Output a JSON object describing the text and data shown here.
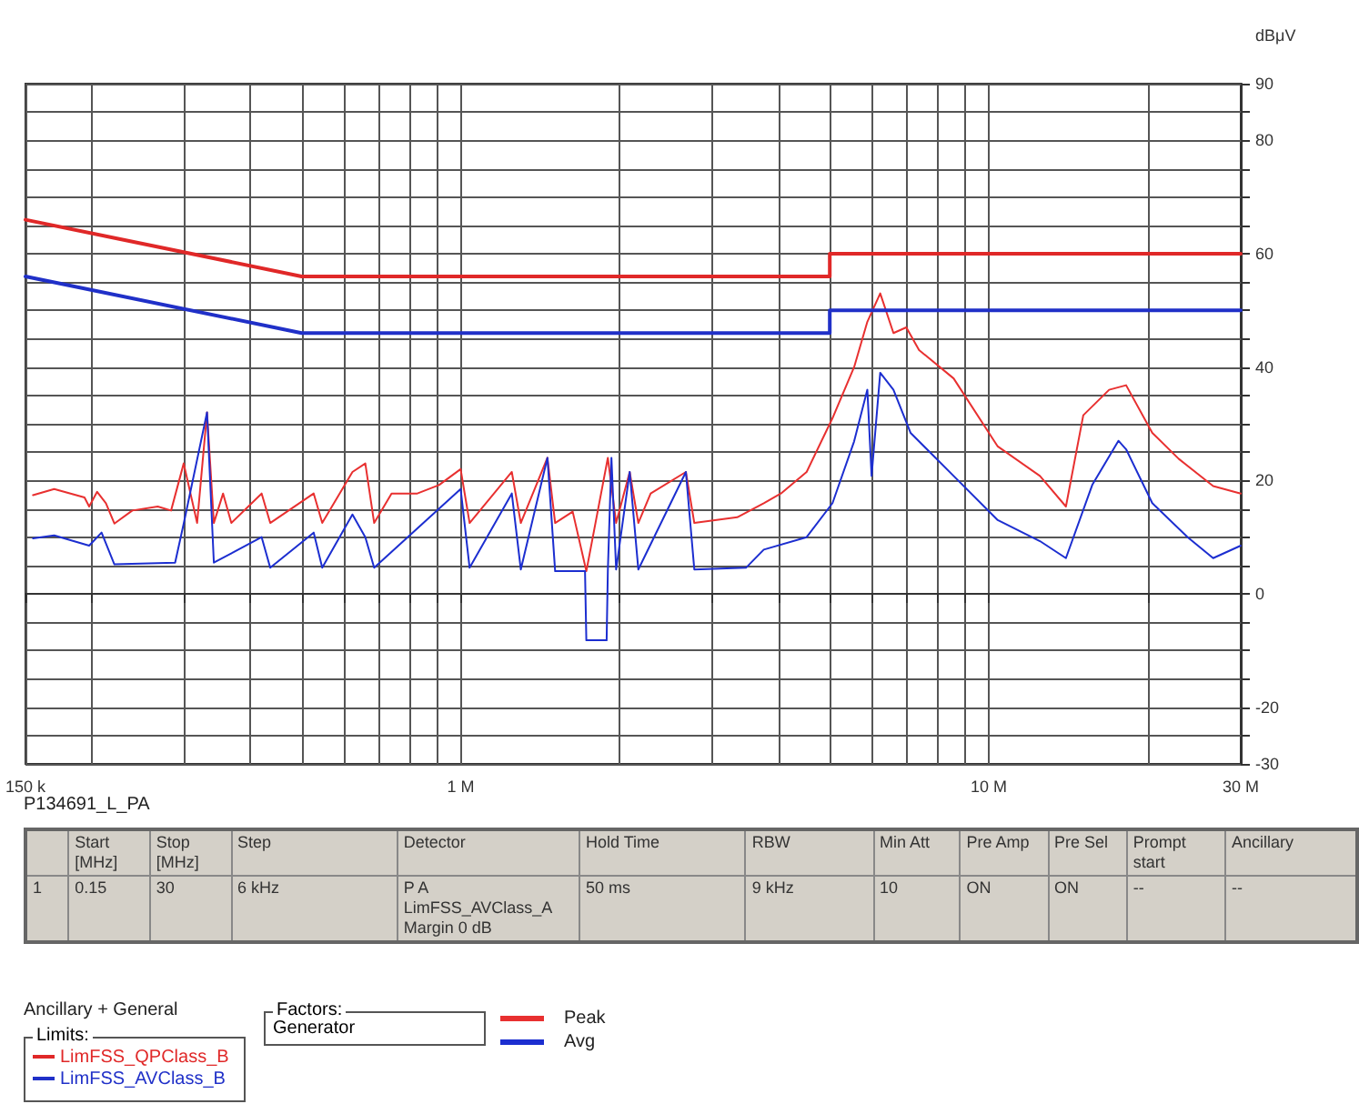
{
  "chart_data": {
    "type": "line",
    "subtitle": "P134691_L_PA",
    "ylabel": "dBμV",
    "xlim": [
      0.15,
      30
    ],
    "log": "x",
    "xticks": [
      {
        "value": 0.15,
        "label": "150 k"
      },
      {
        "value": 0.2,
        "label": null
      },
      {
        "value": 0.3,
        "label": null
      },
      {
        "value": 0.4,
        "label": null
      },
      {
        "value": 0.5,
        "label": null
      },
      {
        "value": 0.6,
        "label": null
      },
      {
        "value": 0.7,
        "label": null
      },
      {
        "value": 0.8,
        "label": null
      },
      {
        "value": 0.9,
        "label": null
      },
      {
        "value": 1,
        "label": "1 M"
      },
      {
        "value": 2,
        "label": null
      },
      {
        "value": 3,
        "label": null
      },
      {
        "value": 4,
        "label": null
      },
      {
        "value": 5,
        "label": null
      },
      {
        "value": 6,
        "label": null
      },
      {
        "value": 7,
        "label": null
      },
      {
        "value": 8,
        "label": null
      },
      {
        "value": 9,
        "label": null
      },
      {
        "value": 10,
        "label": "10 M"
      },
      {
        "value": 20,
        "label": null
      },
      {
        "value": 30,
        "label": "30 M"
      }
    ],
    "ylim": [
      -30,
      90
    ],
    "yticks": [
      -30,
      {
        "value": -25,
        "label": null
      },
      -20,
      {
        "value": -15,
        "label": null
      },
      {
        "value": -10,
        "label": null
      },
      {
        "value": -5,
        "label": null
      },
      0,
      {
        "value": 5,
        "label": null
      },
      {
        "value": 10,
        "label": null
      },
      {
        "value": 15,
        "label": null
      },
      20,
      {
        "value": 25,
        "label": null
      },
      {
        "value": 30,
        "label": null
      },
      {
        "value": 35,
        "label": null
      },
      40,
      {
        "value": 45,
        "label": null
      },
      {
        "value": 50,
        "label": null
      },
      {
        "value": 55,
        "label": null
      },
      60,
      {
        "value": 65,
        "label": null
      },
      {
        "value": 70,
        "label": null
      },
      {
        "value": 75,
        "label": null
      },
      80,
      {
        "value": 85,
        "label": null
      },
      90
    ],
    "grid": true,
    "legend": "bottom",
    "marker": "none",
    "line_style": "solid",
    "series": [
      {
        "name": "LimFSS_QPClass_B",
        "color": "#e02828",
        "x": [
          0.15,
          0.5,
          5,
          5,
          30
        ],
        "values": [
          66,
          56,
          56,
          60,
          60
        ]
      },
      {
        "name": "LimFSS_AVClass_B",
        "color": "#2030c8",
        "x": [
          0.15,
          0.5,
          5,
          5,
          30
        ],
        "values": [
          56,
          46,
          46,
          50,
          50
        ]
      },
      {
        "name": "Peak",
        "color": "#e83030",
        "x": [
          0.155,
          0.17,
          0.194,
          0.198,
          0.205,
          0.213,
          0.221,
          0.239,
          0.267,
          0.283,
          0.299,
          0.317,
          0.331,
          0.341,
          0.355,
          0.368,
          0.42,
          0.436,
          0.527,
          0.547,
          0.624,
          0.66,
          0.686,
          0.74,
          0.828,
          0.91,
          1.0,
          1.04,
          1.25,
          1.3,
          1.46,
          1.51,
          1.63,
          1.73,
          1.9,
          1.97,
          2.09,
          2.17,
          2.29,
          2.67,
          2.77,
          3.34,
          3.75,
          4.04,
          4.52,
          5.06,
          5.56,
          5.89,
          6.23,
          6.6,
          6.98,
          7.38,
          8.58,
          10.4,
          12.5,
          14.0,
          15.1,
          16.9,
          18.2,
          20.4,
          22.9,
          26.6,
          30
        ],
        "values": [
          17.4,
          18.5,
          17,
          15.4,
          18,
          16,
          12.4,
          14.7,
          15.4,
          14.7,
          23,
          12.5,
          32,
          12.5,
          17.7,
          12.5,
          17.7,
          12.5,
          17.7,
          12.5,
          21.5,
          23,
          12.5,
          17.7,
          17.7,
          19.2,
          22,
          12.5,
          21.5,
          12.5,
          24,
          12.5,
          14.5,
          4,
          24,
          12.5,
          21.5,
          12.5,
          17.7,
          21.5,
          12.5,
          13.5,
          16,
          17.7,
          21.5,
          31,
          40,
          48,
          53,
          46,
          47,
          43,
          38,
          26,
          20.8,
          15.4,
          31.5,
          36,
          36.8,
          28.4,
          23.8,
          19,
          17.7
        ]
      },
      {
        "name": "Avg",
        "color": "#1c2ed0",
        "x": [
          0.155,
          0.17,
          0.198,
          0.209,
          0.221,
          0.288,
          0.299,
          0.331,
          0.341,
          0.42,
          0.436,
          0.527,
          0.547,
          0.624,
          0.66,
          0.686,
          1.0,
          1.04,
          1.25,
          1.3,
          1.46,
          1.51,
          1.72,
          1.73,
          1.89,
          1.9,
          1.93,
          1.97,
          2.09,
          2.17,
          2.67,
          2.77,
          3.47,
          3.75,
          4.52,
          5.06,
          5.56,
          5.89,
          6.0,
          6.23,
          6.6,
          7.11,
          8.58,
          10.4,
          12.5,
          14.0,
          15.7,
          17.6,
          18.2,
          20.4,
          23.8,
          26.6,
          30
        ],
        "values": [
          9.8,
          10.3,
          8.5,
          10.8,
          5.2,
          5.5,
          12.4,
          32,
          5.5,
          10,
          4.6,
          10.8,
          4.6,
          14,
          10,
          4.6,
          18.5,
          4.6,
          17.7,
          4.3,
          24,
          4,
          4,
          -8.2,
          -8.2,
          4,
          24,
          4.3,
          21.5,
          4.3,
          21.5,
          4.3,
          4.6,
          7.8,
          10,
          16,
          26.9,
          36,
          20.8,
          39,
          36,
          28.4,
          20.8,
          13,
          9.3,
          6.3,
          19.2,
          27,
          25.5,
          16,
          10,
          6.3,
          8.5
        ]
      }
    ],
    "annotations": [
      "Start\n[MHz]",
      "Stop\n[MHz]",
      "Step",
      "Detector",
      "Hold Time",
      "RBW",
      "Min Att",
      "Pre Amp",
      "Pre Sel",
      "Prompt\nstart",
      "Ancillary",
      "1",
      "0.15",
      "30",
      "6 kHz",
      "P A\nLimFSS_AVClass_A\nMargin 0 dB",
      "50 ms",
      "9 kHz",
      "10",
      "ON",
      "ON",
      "--",
      "--",
      "Ancillary + General",
      "Limits:",
      "Factors:",
      "Generator"
    ]
  }
}
